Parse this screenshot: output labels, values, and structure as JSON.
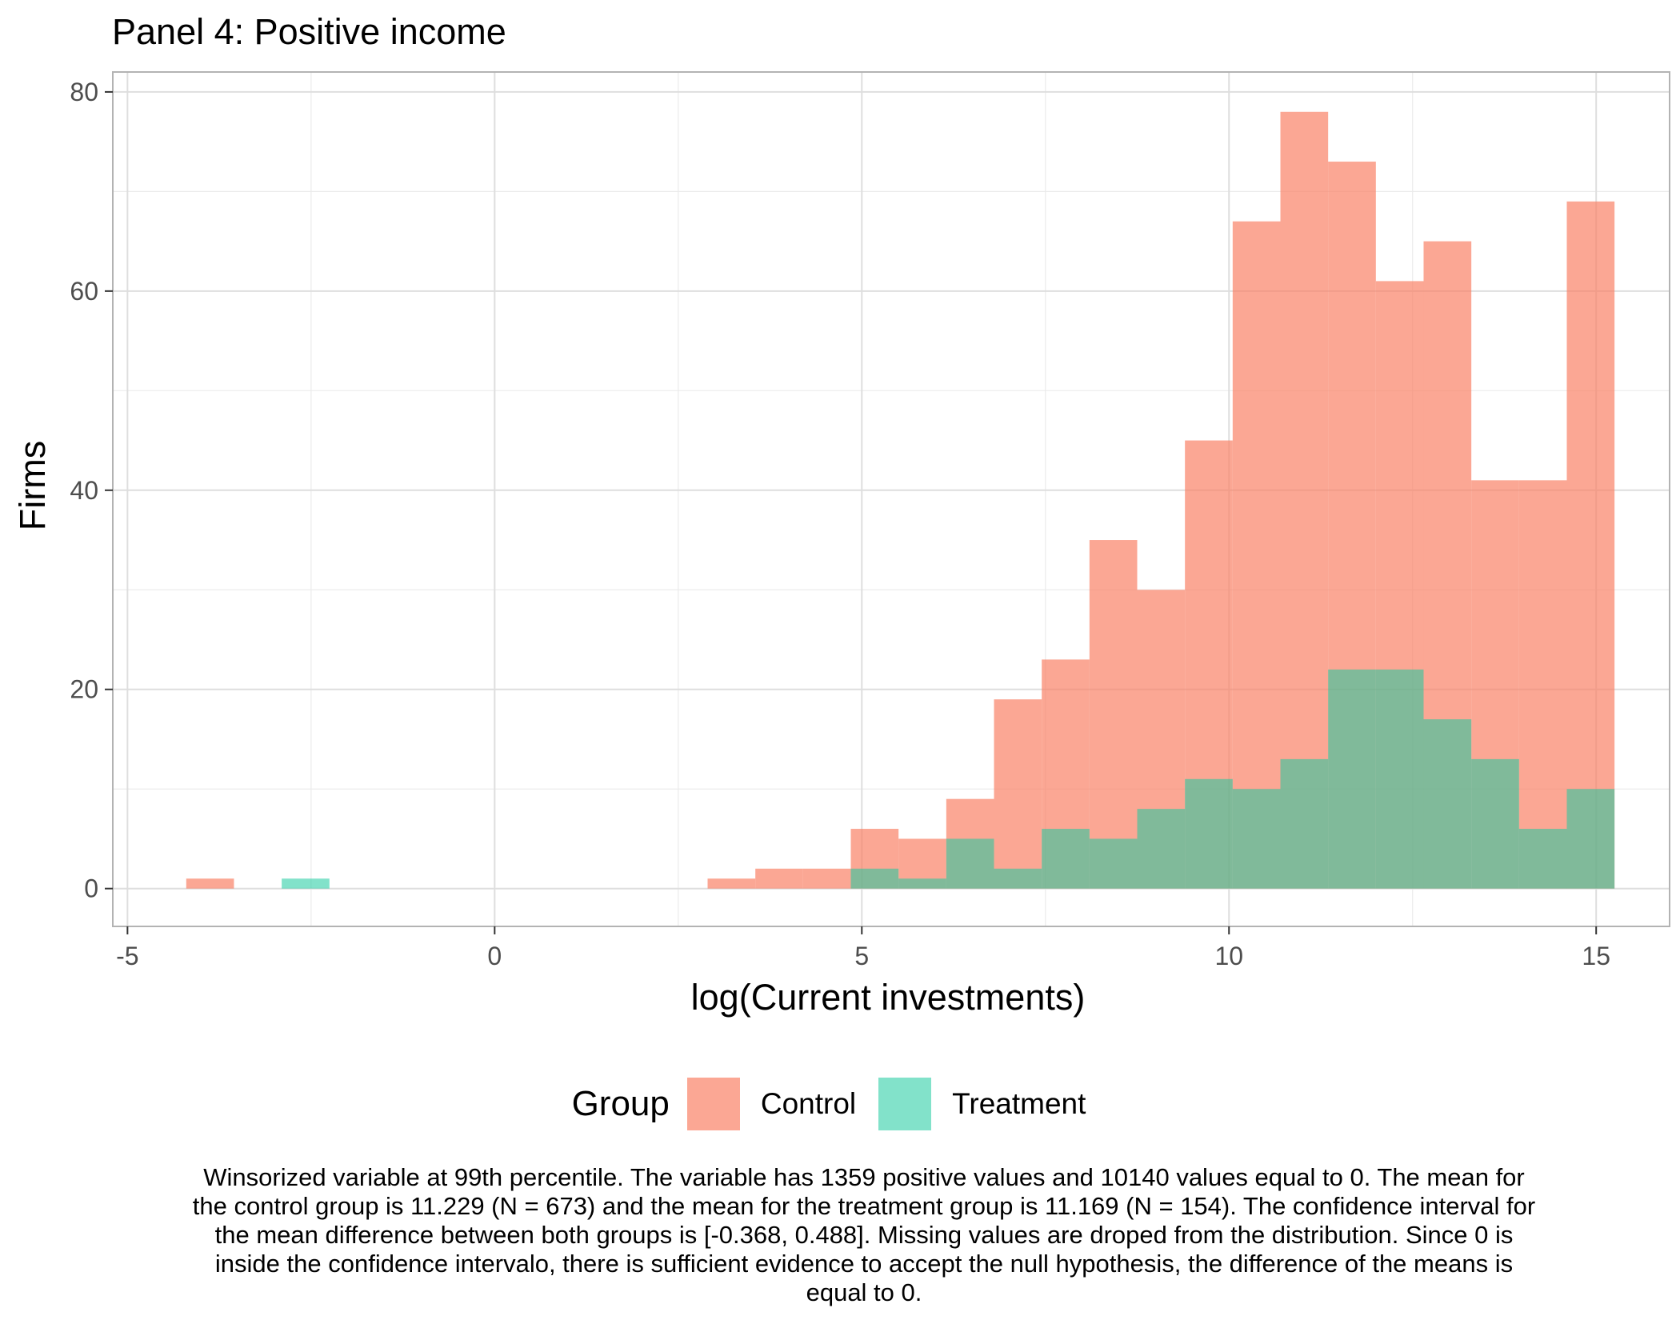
{
  "title": "Panel 4: Positive income",
  "chart_data": {
    "type": "bar",
    "subtype": "overlaid-histogram",
    "xlabel": "log(Current investments)",
    "ylabel": "Firms",
    "xlim": [
      -5.2,
      16.0
    ],
    "ylim": [
      -3.8,
      82
    ],
    "x_ticks": [
      -5,
      0,
      5,
      10,
      15
    ],
    "x_tick_labels": [
      "-5",
      "0",
      "5",
      "10",
      "15"
    ],
    "y_ticks": [
      0,
      20,
      40,
      60,
      80
    ],
    "y_tick_labels": [
      "0",
      "20",
      "40",
      "60",
      "80"
    ],
    "grid": true,
    "legend_title": "Group",
    "legend_position": "bottom",
    "series": [
      {
        "name": "Control",
        "color": "#fa8266",
        "opacity": 0.7,
        "bins": [
          {
            "x0": -4.2,
            "x1": -3.55,
            "value": 1
          },
          {
            "x0": 2.9,
            "x1": 3.55,
            "value": 1
          },
          {
            "x0": 3.55,
            "x1": 4.2,
            "value": 2
          },
          {
            "x0": 4.2,
            "x1": 4.85,
            "value": 2
          },
          {
            "x0": 4.85,
            "x1": 5.5,
            "value": 6
          },
          {
            "x0": 5.5,
            "x1": 6.15,
            "value": 5
          },
          {
            "x0": 6.15,
            "x1": 6.8,
            "value": 9
          },
          {
            "x0": 6.8,
            "x1": 7.45,
            "value": 19
          },
          {
            "x0": 7.45,
            "x1": 8.1,
            "value": 23
          },
          {
            "x0": 8.1,
            "x1": 8.75,
            "value": 35
          },
          {
            "x0": 8.75,
            "x1": 9.4,
            "value": 30
          },
          {
            "x0": 9.4,
            "x1": 10.05,
            "value": 45
          },
          {
            "x0": 10.05,
            "x1": 10.7,
            "value": 67
          },
          {
            "x0": 10.7,
            "x1": 11.35,
            "value": 78
          },
          {
            "x0": 11.35,
            "x1": 12.0,
            "value": 73
          },
          {
            "x0": 12.0,
            "x1": 12.65,
            "value": 61
          },
          {
            "x0": 12.65,
            "x1": 13.3,
            "value": 65
          },
          {
            "x0": 13.3,
            "x1": 13.95,
            "value": 41
          },
          {
            "x0": 13.95,
            "x1": 14.6,
            "value": 41
          },
          {
            "x0": 14.6,
            "x1": 15.25,
            "value": 69
          }
        ]
      },
      {
        "name": "Treatment",
        "color": "#1ccb9f",
        "opacity": 0.55,
        "bins": [
          {
            "x0": -2.9,
            "x1": -2.25,
            "value": 1
          },
          {
            "x0": 4.85,
            "x1": 5.5,
            "value": 2
          },
          {
            "x0": 5.5,
            "x1": 6.15,
            "value": 1
          },
          {
            "x0": 6.15,
            "x1": 6.8,
            "value": 5
          },
          {
            "x0": 6.8,
            "x1": 7.45,
            "value": 2
          },
          {
            "x0": 7.45,
            "x1": 8.1,
            "value": 6
          },
          {
            "x0": 8.1,
            "x1": 8.75,
            "value": 5
          },
          {
            "x0": 8.75,
            "x1": 9.4,
            "value": 8
          },
          {
            "x0": 9.4,
            "x1": 10.05,
            "value": 11
          },
          {
            "x0": 10.05,
            "x1": 10.7,
            "value": 10
          },
          {
            "x0": 10.7,
            "x1": 11.35,
            "value": 13
          },
          {
            "x0": 11.35,
            "x1": 12.0,
            "value": 22
          },
          {
            "x0": 12.0,
            "x1": 12.65,
            "value": 22
          },
          {
            "x0": 12.65,
            "x1": 13.3,
            "value": 17
          },
          {
            "x0": 13.3,
            "x1": 13.95,
            "value": 13
          },
          {
            "x0": 13.95,
            "x1": 14.6,
            "value": 6
          },
          {
            "x0": 14.6,
            "x1": 15.25,
            "value": 10
          }
        ]
      }
    ]
  },
  "caption": "Winsorized variable at 99th percentile. The variable has 1359 positive values and 10140 values equal to 0. The mean for the control group is 11.229 (N = 673) and the mean for the treatment group is 11.169 (N = 154). The confidence interval for the mean difference between both groups is [-0.368, 0.488]. Missing values are droped from the distribution. Since 0 is inside the confidence intervalo, there is sufficient evidence to accept the null hypothesis, the difference of the means is equal to 0."
}
